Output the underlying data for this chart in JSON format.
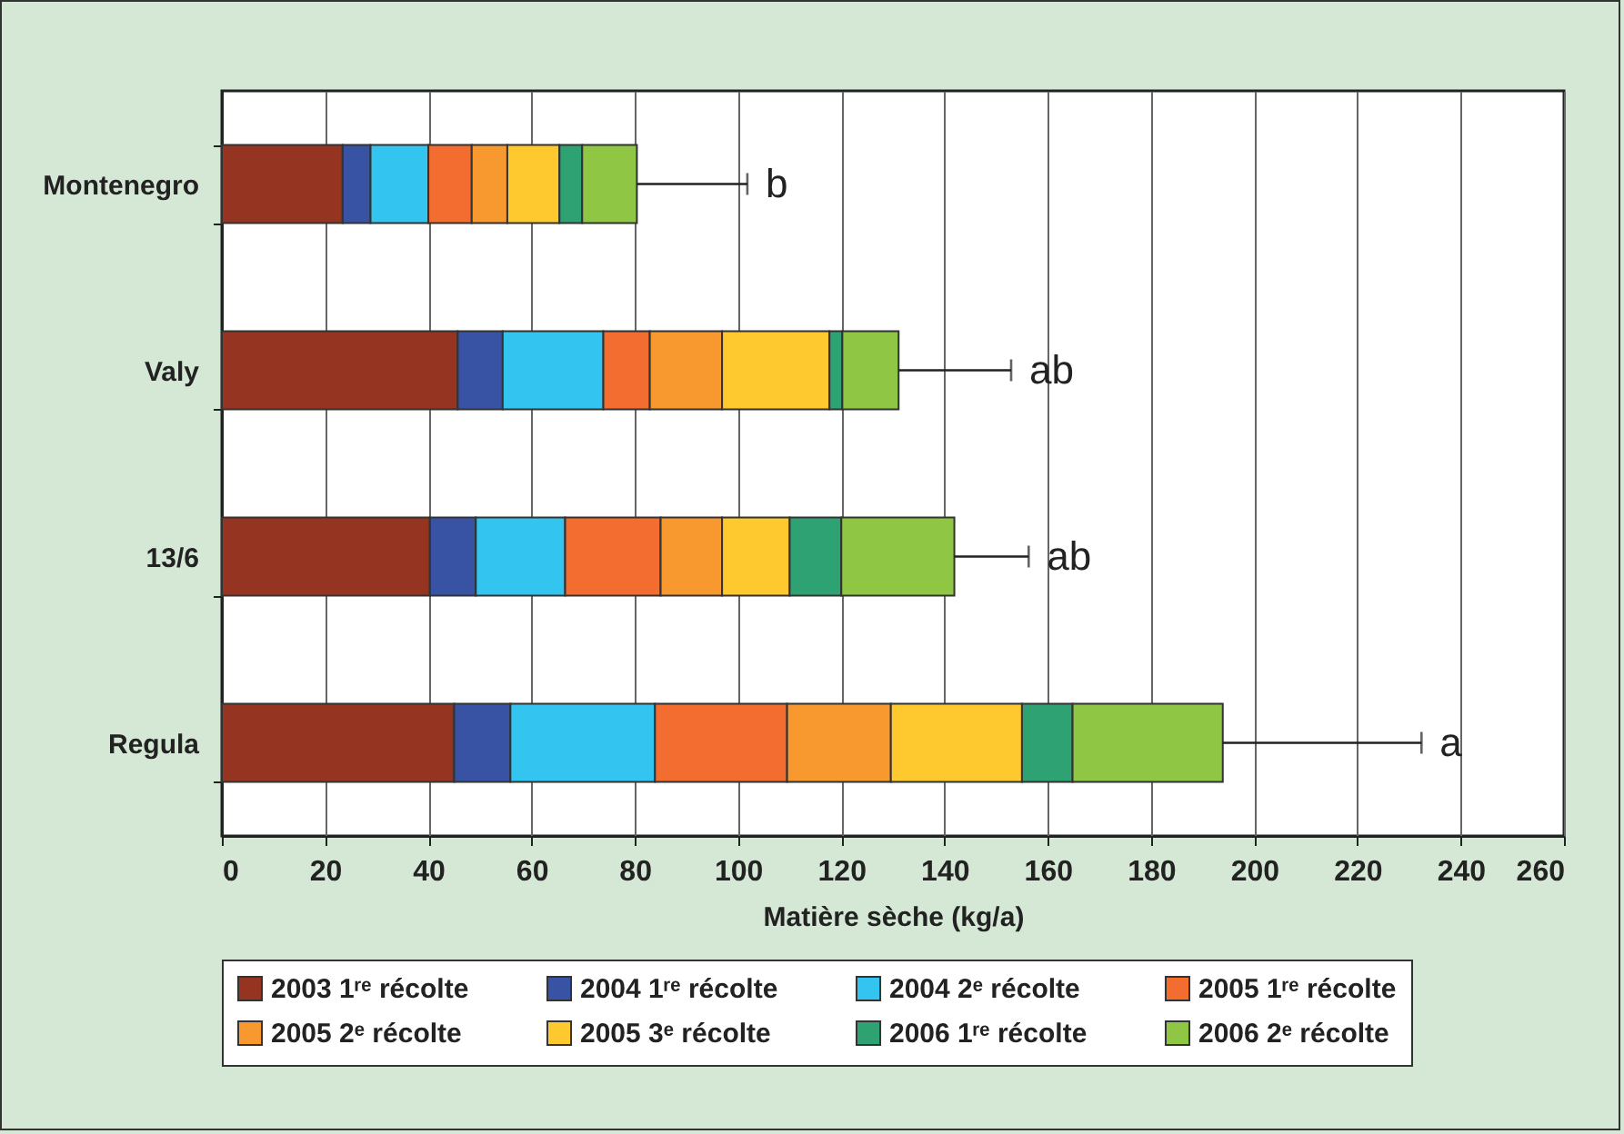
{
  "chart_data": {
    "type": "bar",
    "orientation": "horizontal",
    "stacked": true,
    "xlabel": "Matière sèche (kg/a)",
    "categories": [
      "Montenegro",
      "Valy",
      "13/6",
      "Regula"
    ],
    "series": [
      {
        "name": "2003 1ʳᵉ récolte",
        "color": "#943421",
        "values": [
          23.4,
          45.7,
          40.3,
          45.0
        ]
      },
      {
        "name": "2004 1ʳᵉ récolte",
        "color": "#3953a4",
        "values": [
          5.4,
          8.7,
          8.9,
          10.9
        ]
      },
      {
        "name": "2004 2ᵉ récolte",
        "color": "#33c4f0",
        "values": [
          11.2,
          19.5,
          17.3,
          28.0
        ]
      },
      {
        "name": "2005 1ʳᵉ récolte",
        "color": "#f26d2f",
        "values": [
          8.4,
          9.0,
          18.5,
          25.6
        ]
      },
      {
        "name": "2005 2ᵉ récolte",
        "color": "#f7992f",
        "values": [
          6.9,
          14.0,
          11.9,
          20.1
        ]
      },
      {
        "name": "2005 3ᵉ récolte",
        "color": "#fec92e",
        "values": [
          10.1,
          20.8,
          13.1,
          25.4
        ]
      },
      {
        "name": "2006 1ʳᵉ récolte",
        "color": "#2fa274",
        "values": [
          4.4,
          2.5,
          10.0,
          9.8
        ]
      },
      {
        "name": "2006 2ᵉ récolte",
        "color": "#8fc643",
        "values": [
          10.6,
          10.9,
          21.9,
          29.1
        ],
        "errors": [
          [
            80.4,
            101.8
          ],
          [
            131.1,
            152.9
          ],
          [
            141.9,
            156.3
          ],
          [
            193.9,
            232.4
          ]
        ]
      }
    ],
    "annotations": [
      {
        "text": "b",
        "x": 101.8,
        "y": "Montenegro"
      },
      {
        "text": "ab",
        "x": 152.9,
        "y": "Valy"
      },
      {
        "text": "ab",
        "x": 156.3,
        "y": "13/6"
      },
      {
        "text": "a",
        "x": 232.4,
        "y": "Regula"
      }
    ],
    "xlim": [
      0,
      260
    ],
    "xticks": [
      0,
      20,
      40,
      60,
      80,
      100,
      120,
      140,
      160,
      180,
      200,
      220,
      240,
      260
    ],
    "grid": "x",
    "legend": "bottom"
  }
}
